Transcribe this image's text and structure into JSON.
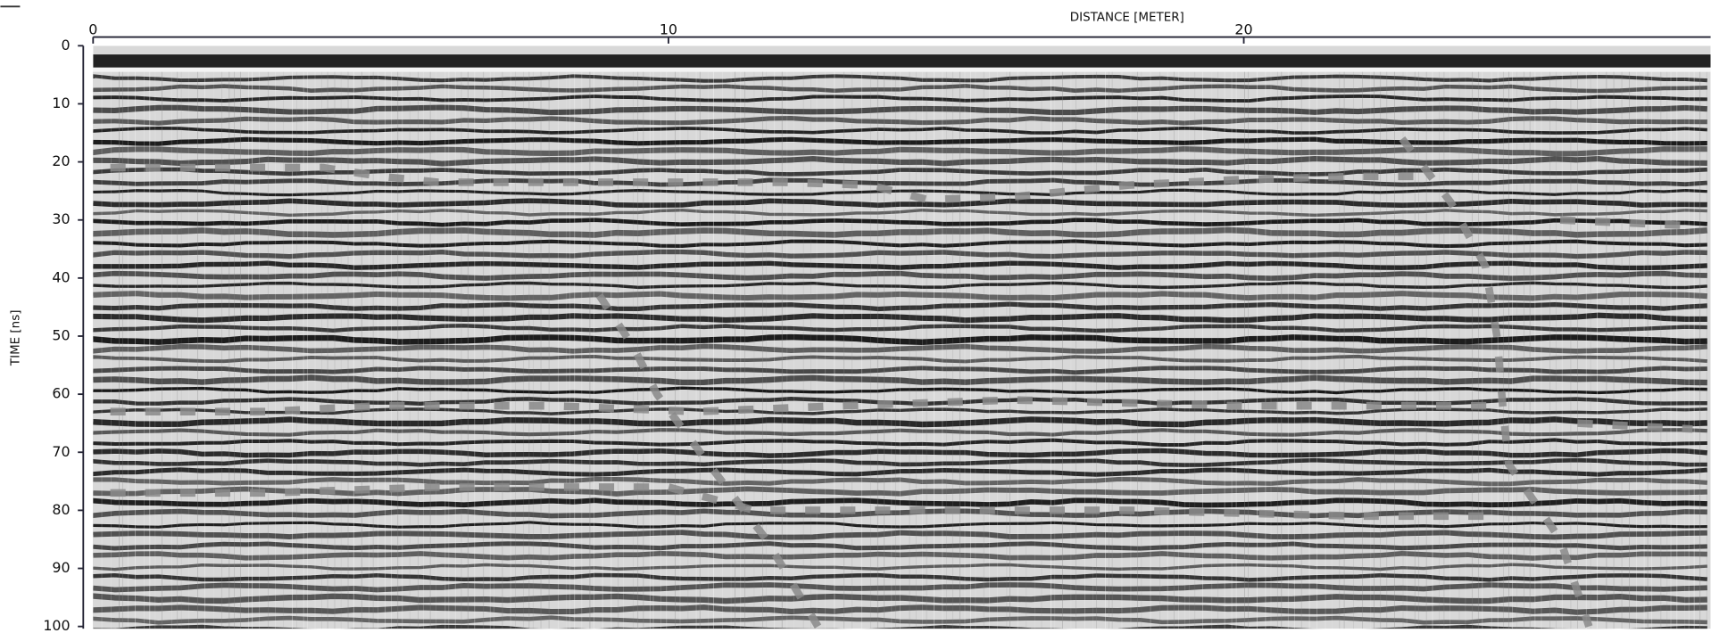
{
  "chart_data": {
    "type": "radargram",
    "title": "DISTANCE [METER]",
    "y_label": "TIME [ns]",
    "xlim": [
      0,
      28
    ],
    "xticks": [
      0,
      10,
      20
    ],
    "ylim": [
      0,
      100
    ],
    "yticks": [
      0,
      10,
      20,
      30,
      40,
      50,
      60,
      70,
      80,
      90,
      100
    ],
    "y_inverted": true,
    "series": [
      {
        "color": "#8a8a8a",
        "x": [
          0.3,
          2,
          4,
          5,
          6,
          8,
          10,
          12,
          13.5,
          14.5,
          16,
          17,
          18,
          20,
          22,
          23
        ],
        "values": [
          21,
          21,
          21,
          22.5,
          23.5,
          23.5,
          23.5,
          23.5,
          24,
          26.5,
          26,
          25,
          24,
          23,
          22.5,
          22.5
        ]
      },
      {
        "color": "#8a8a8a",
        "x": [
          0.3,
          3,
          5,
          8,
          10.5,
          13,
          16,
          20,
          23,
          24.5
        ],
        "values": [
          63,
          63,
          62,
          62,
          63,
          62,
          61,
          62,
          62,
          62
        ]
      },
      {
        "color": "#8a8a8a",
        "x": [
          0.3,
          3,
          6,
          10,
          11.5,
          14,
          18,
          22,
          24.5
        ],
        "values": [
          77,
          77,
          76,
          76,
          80,
          80,
          80,
          81,
          81
        ]
      },
      {
        "color": "#8a8a8a",
        "x": [
          8.8,
          9.4,
          9.8,
          10.7,
          11.7,
          12.6
        ],
        "values": [
          43,
          52,
          60,
          72,
          85,
          100
        ]
      },
      {
        "color": "#8a8a8a",
        "x": [
          22.75,
          23.6,
          24.2,
          24.4,
          24.5,
          24.6,
          25.5,
          26
        ],
        "values": [
          16,
          27,
          38,
          50,
          62,
          72,
          85,
          100
        ]
      },
      {
        "color": "#8a8a8a",
        "x": [
          25.5,
          27.8
        ],
        "values": [
          30,
          31
        ]
      },
      {
        "color": "#8a8a8a",
        "x": [
          25.8,
          27.8
        ],
        "values": [
          65,
          66
        ]
      }
    ]
  }
}
